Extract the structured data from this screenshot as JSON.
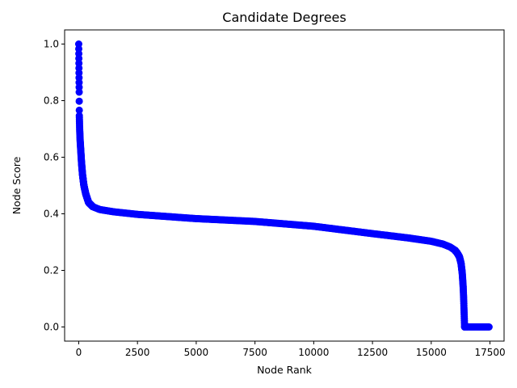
{
  "chart_data": {
    "type": "scatter",
    "title": "Candidate Degrees",
    "xlabel": "Node Rank",
    "ylabel": "Node Score",
    "xlim": [
      -600,
      18100
    ],
    "ylim": [
      -0.05,
      1.05
    ],
    "x_ticks": [
      0,
      2500,
      5000,
      7500,
      10000,
      12500,
      15000,
      17500
    ],
    "x_tick_labels": [
      "0",
      "2500",
      "5000",
      "7500",
      "10000",
      "12500",
      "15000",
      "17500"
    ],
    "y_ticks": [
      0.0,
      0.2,
      0.4,
      0.6,
      0.8,
      1.0
    ],
    "y_tick_labels": [
      "0.0",
      "0.2",
      "0.4",
      "0.6",
      "0.8",
      "1.0"
    ],
    "grid": false,
    "marker_color": "#0000ff",
    "curve_points": [
      [
        0,
        1.0
      ],
      [
        20,
        0.83
      ],
      [
        25,
        0.75
      ],
      [
        40,
        0.7
      ],
      [
        60,
        0.66
      ],
      [
        90,
        0.62
      ],
      [
        120,
        0.58
      ],
      [
        160,
        0.54
      ],
      [
        220,
        0.5
      ],
      [
        300,
        0.47
      ],
      [
        420,
        0.44
      ],
      [
        600,
        0.425
      ],
      [
        900,
        0.415
      ],
      [
        1500,
        0.407
      ],
      [
        2500,
        0.398
      ],
      [
        5000,
        0.383
      ],
      [
        7500,
        0.373
      ],
      [
        10000,
        0.356
      ],
      [
        12500,
        0.33
      ],
      [
        14000,
        0.315
      ],
      [
        15000,
        0.303
      ],
      [
        15500,
        0.293
      ],
      [
        15800,
        0.283
      ],
      [
        16000,
        0.272
      ],
      [
        16100,
        0.262
      ],
      [
        16200,
        0.248
      ],
      [
        16270,
        0.225
      ],
      [
        16320,
        0.19
      ],
      [
        16360,
        0.14
      ],
      [
        16380,
        0.1
      ],
      [
        16400,
        0.05
      ],
      [
        16420,
        0.0
      ],
      [
        17500,
        0.0
      ]
    ],
    "n_points": 17500
  }
}
